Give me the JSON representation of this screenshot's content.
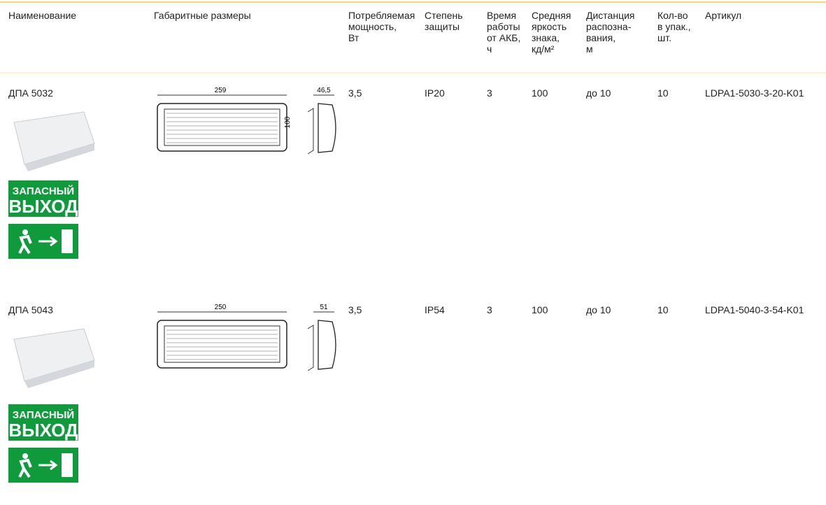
{
  "header": {
    "columns": [
      [
        "Наименование"
      ],
      [
        "Габаритные размеры"
      ],
      [
        "Потребляемая",
        "мощность,",
        "Вт"
      ],
      [
        "Степень",
        "защиты"
      ],
      [
        "Время",
        "работы",
        "от АКБ,",
        "ч"
      ],
      [
        "Средняя",
        "яркость",
        "знака,",
        "кд/м²"
      ],
      [
        "Дистанция",
        "распозна-",
        "вания,",
        "м"
      ],
      [
        "Кол-во",
        "в упак.,",
        "шт."
      ],
      [
        "Артикул"
      ]
    ]
  },
  "rows": [
    {
      "name": "ДПА 5032",
      "power": "3,5",
      "protection": "IP20",
      "battery_time": "3",
      "brightness": "100",
      "distance": "до 10",
      "pack_qty": "10",
      "article": "LDPA1-5030-3-20-K01",
      "drawing": {
        "width": "259",
        "height": "100",
        "depth": "46,5"
      },
      "sign": [
        "ЗАПАСНЫЙ",
        "ВЫХОД"
      ]
    },
    {
      "name": "ДПА 5043",
      "power": "3,5",
      "protection": "IP54",
      "battery_time": "3",
      "brightness": "100",
      "distance": "до 10",
      "pack_qty": "10",
      "article": "LDPA1-5040-3-54-K01",
      "drawing": {
        "width": "250",
        "depth": "51"
      },
      "sign": [
        "ЗАПАСНЫЙ",
        "ВЫХОД"
      ]
    }
  ]
}
